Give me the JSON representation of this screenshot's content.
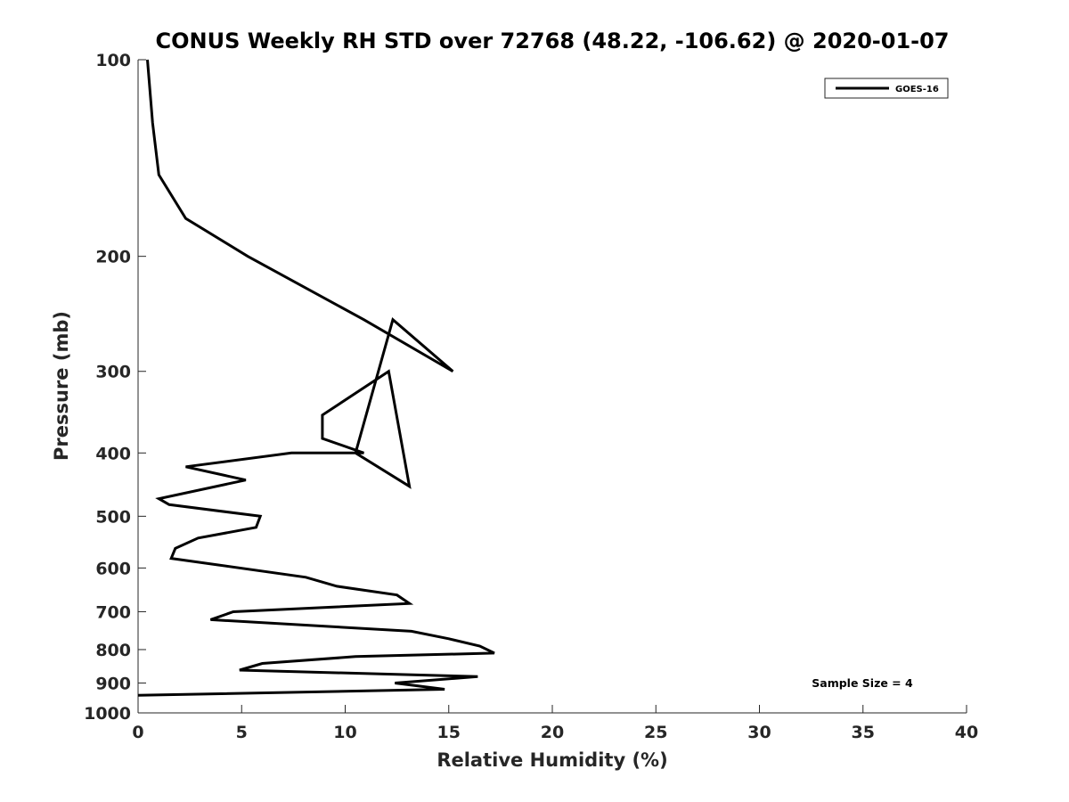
{
  "chart_data": {
    "type": "line",
    "title": "CONUS Weekly RH STD over 72768 (48.22, -106.62) @ 2020-01-07",
    "xlabel": "Relative Humidity (%)",
    "ylabel": "Pressure (mb)",
    "xlim": [
      0,
      40
    ],
    "ylim": [
      100,
      1000
    ],
    "y_scale": "log",
    "y_reversed": true,
    "grid": false,
    "x_ticks": [
      "0",
      "5",
      "10",
      "15",
      "20",
      "25",
      "30",
      "35",
      "40"
    ],
    "y_ticks": [
      "100",
      "200",
      "300",
      "400",
      "500",
      "600",
      "700",
      "800",
      "900",
      "1000"
    ],
    "legend": {
      "position": "top-right",
      "entries": [
        "GOES-16"
      ]
    },
    "annotation": "Sample Size = 4",
    "series": [
      {
        "name": "GOES-16",
        "color": "#000000",
        "points": [
          [
            0.45,
            100
          ],
          [
            0.7,
            125
          ],
          [
            1.0,
            150
          ],
          [
            2.3,
            175
          ],
          [
            5.3,
            200
          ],
          [
            10.9,
            250
          ],
          [
            15.2,
            300
          ],
          [
            12.3,
            250
          ],
          [
            10.5,
            400
          ],
          [
            13.1,
            450
          ],
          [
            12.1,
            300
          ],
          [
            8.9,
            350
          ],
          [
            8.9,
            380
          ],
          [
            10.9,
            400
          ],
          [
            10.4,
            400
          ],
          [
            7.4,
            400
          ],
          [
            2.3,
            420
          ],
          [
            5.2,
            440
          ],
          [
            1.0,
            470
          ],
          [
            1.5,
            480
          ],
          [
            5.9,
            500
          ],
          [
            5.7,
            520
          ],
          [
            2.9,
            540
          ],
          [
            1.8,
            560
          ],
          [
            1.6,
            580
          ],
          [
            8.1,
            620
          ],
          [
            9.6,
            640
          ],
          [
            12.5,
            660
          ],
          [
            13.1,
            680
          ],
          [
            4.6,
            700
          ],
          [
            3.5,
            720
          ],
          [
            13.2,
            750
          ],
          [
            15.0,
            770
          ],
          [
            16.5,
            790
          ],
          [
            17.2,
            810
          ],
          [
            10.5,
            820
          ],
          [
            6.0,
            840
          ],
          [
            4.9,
            860
          ],
          [
            16.4,
            880
          ],
          [
            12.4,
            900
          ],
          [
            14.8,
            920
          ],
          [
            0.0,
            940
          ]
        ]
      }
    ]
  }
}
